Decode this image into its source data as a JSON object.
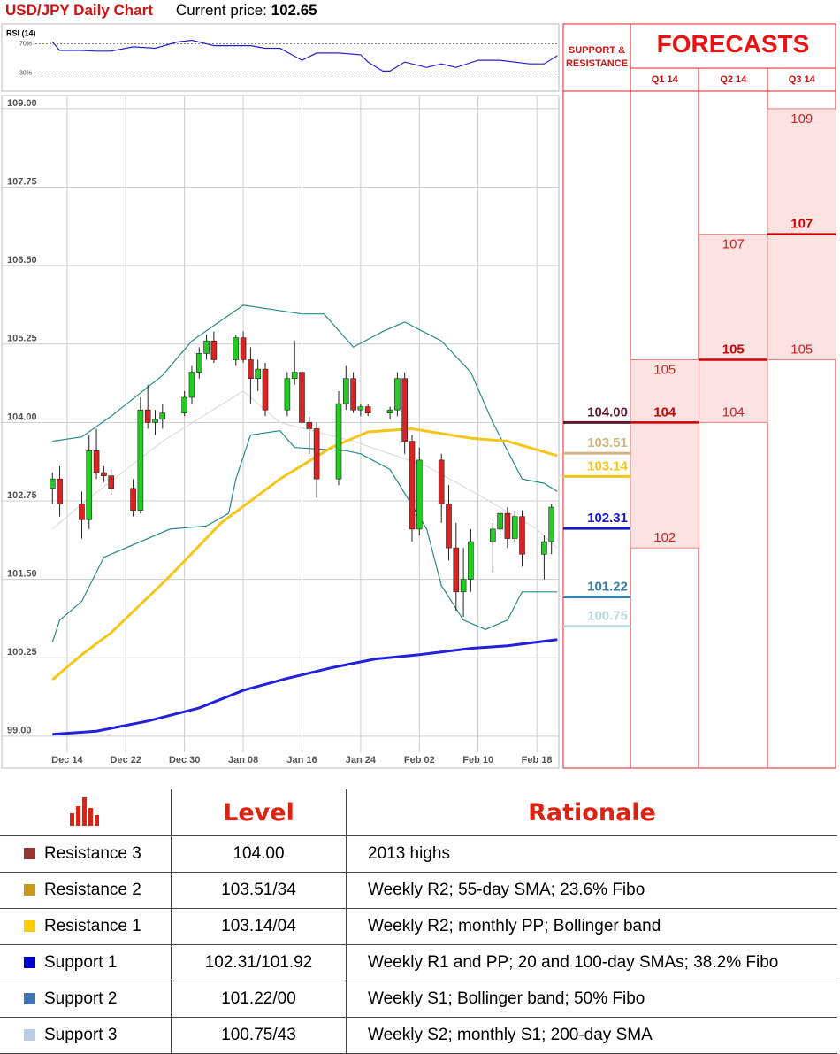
{
  "header": {
    "title": "USD/JPY Daily Chart",
    "price_label": "Current price:",
    "price": 102.65
  },
  "chart_data": [
    {
      "type": "line",
      "title": "RSI (14)",
      "color": "#2222cc",
      "x": [
        0,
        1,
        4,
        6,
        8,
        11,
        14,
        17,
        19,
        22,
        27,
        29,
        31,
        34,
        36,
        39,
        42,
        43,
        45,
        46,
        48,
        51,
        53,
        55,
        58,
        61,
        65,
        67,
        68.8
      ],
      "values": [
        72.5,
        61,
        61,
        60,
        60,
        66,
        64,
        72.5,
        75,
        67.5,
        67.5,
        64,
        64,
        47.5,
        57.5,
        57.5,
        55,
        45,
        32.5,
        32.5,
        45,
        37.5,
        42.5,
        37.5,
        47.5,
        47.5,
        42.5,
        42.5,
        53.75
      ],
      "xlim": [
        -6.9,
        69
      ],
      "ylim": [
        5,
        97.5
      ],
      "yticks": [
        {
          "value": 70,
          "label": "70%"
        },
        {
          "value": 30,
          "label": "30%"
        }
      ]
    },
    {
      "type": "candlestick",
      "up_color": "#22cc22",
      "down_color": "#dd2222",
      "grid": true,
      "x": [
        0,
        1,
        4,
        5,
        6,
        7,
        8,
        11,
        12,
        13,
        14,
        15,
        18,
        19,
        20,
        21,
        22,
        25,
        26,
        27,
        28,
        29,
        32,
        33,
        34,
        35,
        36,
        39,
        40,
        41,
        42,
        43,
        46,
        47,
        48,
        49,
        50,
        53,
        54,
        55,
        56,
        57,
        60,
        61,
        62,
        63,
        64,
        67,
        68
      ],
      "open": [
        102.95,
        103.1,
        102.7,
        102.45,
        103.55,
        103.2,
        103.15,
        102.95,
        102.6,
        104.2,
        104.0,
        104.05,
        104.15,
        104.4,
        104.8,
        105.1,
        105.3,
        105.0,
        105.35,
        105.0,
        104.7,
        104.85,
        104.2,
        104.7,
        104.8,
        104.0,
        103.9,
        103.1,
        104.3,
        104.7,
        104.2,
        104.25,
        104.15,
        104.2,
        104.7,
        103.7,
        102.3,
        103.4,
        102.7,
        102.0,
        101.3,
        101.5,
        102.1,
        102.3,
        102.55,
        102.15,
        102.5,
        101.9,
        102.1
      ],
      "high": [
        103.2,
        103.3,
        102.9,
        103.8,
        103.9,
        103.3,
        103.25,
        103.1,
        104.4,
        104.6,
        104.2,
        104.3,
        104.5,
        104.9,
        105.2,
        105.4,
        105.45,
        105.4,
        105.45,
        105.2,
        105.0,
        104.95,
        104.8,
        105.3,
        105.2,
        104.1,
        104.0,
        104.5,
        104.9,
        104.8,
        104.3,
        104.3,
        104.25,
        104.8,
        104.8,
        103.8,
        103.6,
        103.5,
        103.0,
        102.4,
        102.0,
        102.3,
        102.4,
        102.6,
        102.65,
        102.6,
        102.6,
        102.2,
        102.7
      ],
      "low": [
        102.7,
        102.5,
        102.15,
        102.3,
        103.1,
        103.05,
        102.85,
        102.5,
        102.55,
        103.9,
        103.8,
        103.9,
        104.1,
        104.3,
        104.7,
        105.0,
        104.95,
        104.9,
        104.95,
        104.3,
        104.5,
        104.1,
        104.1,
        104.6,
        103.9,
        103.5,
        102.8,
        103.0,
        104.2,
        104.15,
        104.1,
        104.1,
        104.05,
        104.1,
        103.5,
        102.1,
        102.2,
        102.4,
        101.8,
        101.0,
        100.9,
        101.3,
        101.6,
        102.2,
        102.0,
        102.1,
        101.7,
        101.5,
        101.9
      ],
      "close": [
        103.1,
        102.7,
        102.45,
        103.55,
        103.2,
        103.15,
        102.95,
        102.6,
        104.2,
        104.0,
        104.05,
        104.15,
        104.4,
        104.8,
        105.1,
        105.3,
        105.0,
        105.35,
        105.0,
        104.7,
        104.85,
        104.2,
        104.7,
        104.8,
        104.0,
        103.9,
        103.1,
        104.3,
        104.7,
        104.2,
        104.25,
        104.15,
        104.2,
        104.7,
        103.7,
        102.3,
        103.4,
        102.7,
        102.0,
        101.3,
        101.5,
        102.1,
        102.3,
        102.55,
        102.15,
        102.5,
        101.9,
        102.1,
        102.65
      ],
      "lines": [
        {
          "color": "#2a8a8a",
          "x": [
            0,
            4,
            8,
            15,
            19,
            26,
            34,
            37,
            41,
            45,
            48,
            53,
            57,
            60,
            64,
            67,
            68.8
          ],
          "values": [
            103.7,
            103.77,
            104.1,
            104.75,
            105.3,
            105.87,
            105.73,
            105.73,
            105.2,
            105.45,
            105.6,
            105.3,
            104.8,
            104.0,
            103.1,
            103.03,
            102.9
          ]
        },
        {
          "color": "#2a8a8a",
          "x": [
            0,
            1,
            4,
            7,
            16,
            21,
            24,
            25,
            27,
            31,
            33,
            40,
            42,
            46,
            51,
            53,
            56,
            59,
            62,
            64,
            68.8
          ],
          "values": [
            100.5,
            100.85,
            101.15,
            101.85,
            102.3,
            102.35,
            102.55,
            103.1,
            103.8,
            103.87,
            103.6,
            103.55,
            103.5,
            103.25,
            102.3,
            101.4,
            100.85,
            100.7,
            100.85,
            101.3,
            101.3
          ]
        },
        {
          "color": "#dddddd",
          "x": [
            0,
            4,
            15,
            26,
            31,
            41,
            51,
            58,
            66,
            68.8
          ],
          "values": [
            102.3,
            102.7,
            103.7,
            104.5,
            104.0,
            103.7,
            103.3,
            102.85,
            102.3,
            102.0
          ]
        },
        {
          "color": "#f5c518",
          "x": [
            0,
            4,
            8,
            16,
            23,
            31,
            38,
            43,
            49,
            57,
            62,
            68.8
          ],
          "values": [
            99.9,
            100.3,
            100.65,
            101.55,
            102.4,
            103.1,
            103.6,
            103.85,
            103.9,
            103.75,
            103.7,
            103.47
          ]
        },
        {
          "color": "#2222dd",
          "x": [
            0,
            6,
            13,
            20,
            26,
            32,
            38,
            44,
            50,
            57,
            62,
            68.8
          ],
          "values": [
            99.03,
            99.08,
            99.24,
            99.45,
            99.73,
            99.92,
            100.09,
            100.23,
            100.3,
            100.4,
            100.44,
            100.54
          ]
        }
      ],
      "xlim": [
        -6.9,
        69
      ],
      "ylim": [
        98.49,
        109.21
      ],
      "xticks": [
        {
          "value": 2,
          "label": "Dec 14"
        },
        {
          "value": 10,
          "label": "Dec 22"
        },
        {
          "value": 18,
          "label": "Dec 30"
        },
        {
          "value": 26,
          "label": "Jan 08"
        },
        {
          "value": 34,
          "label": "Jan 16"
        },
        {
          "value": 42,
          "label": "Jan 24"
        },
        {
          "value": 50,
          "label": "Feb 02"
        },
        {
          "value": 58,
          "label": "Feb 10"
        },
        {
          "value": 66,
          "label": "Feb 18"
        }
      ],
      "yticks": [
        {
          "value": 99,
          "label": "99.00"
        },
        {
          "value": 100.25,
          "label": "100.25"
        },
        {
          "value": 101.5,
          "label": "101.50"
        },
        {
          "value": 102.75,
          "label": "102.75"
        },
        {
          "value": 104,
          "label": "104.00"
        },
        {
          "value": 105.25,
          "label": "105.25"
        },
        {
          "value": 106.5,
          "label": "106.50"
        },
        {
          "value": 107.75,
          "label": "107.75"
        },
        {
          "value": 109,
          "label": "109.00"
        }
      ],
      "levels_title": "SUPPORT & RESISTANCE",
      "levels": [
        {
          "value": 104,
          "label": "104.00",
          "color": "#5c1a33"
        },
        {
          "value": 103.51,
          "label": "103.51",
          "color": "#d4b483"
        },
        {
          "value": 103.14,
          "label": "103.14",
          "color": "#f5c518"
        },
        {
          "value": 102.31,
          "label": "102.31",
          "color": "#1a1acc"
        },
        {
          "value": 101.22,
          "label": "101.22",
          "color": "#3a7fa8"
        },
        {
          "value": 100.75,
          "label": "100.75",
          "color": "#b8d8e0"
        }
      ],
      "forecasts_title": "FORECASTS",
      "forecasts": [
        {
          "period": "Q1 14",
          "high": 105,
          "target": 104,
          "low": 102
        },
        {
          "period": "Q2 14",
          "high": 107,
          "target": 105,
          "low": 104
        },
        {
          "period": "Q3 14",
          "high": 109,
          "target": 107,
          "low": 105
        }
      ]
    }
  ],
  "table": {
    "header": [
      "Level",
      "Rationale"
    ],
    "rows": [
      {
        "color": "#943634",
        "name": "Resistance 3",
        "level": "104.00",
        "rationale": "2013 highs"
      },
      {
        "color": "#c89a1a",
        "name": "Resistance 2",
        "level": "103.51/34",
        "rationale": "Weekly R2; 55-day SMA; 23.6% Fibo"
      },
      {
        "color": "#ffcc00",
        "name": "Resistance 1",
        "level": "103.14/04",
        "rationale": "Weekly R2; monthly PP; Bollinger band"
      },
      {
        "color": "#0000cc",
        "name": "Support 1",
        "level": "102.31/101.92",
        "rationale": "Weekly R1 and PP; 20 and 100-day SMAs; 38.2% Fibo"
      },
      {
        "color": "#3f74b5",
        "name": "Support 2",
        "level": "101.22/00",
        "rationale": "Weekly S1; Bollinger band; 50% Fibo"
      },
      {
        "color": "#b8cce4",
        "name": "Support 3",
        "level": "100.75/43",
        "rationale": "Weekly S2; monthly S1; 200-day SMA"
      }
    ]
  }
}
